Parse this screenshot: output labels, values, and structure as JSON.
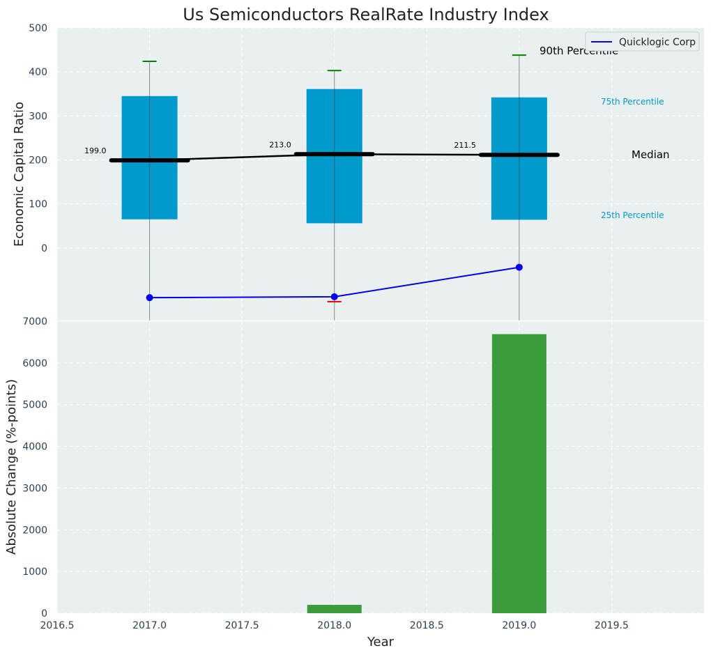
{
  "chart_data": [
    {
      "type": "box",
      "title": "Us Semiconductors RealRate Industry Index",
      "ylabel": "Economic Capital Ratio",
      "ylim": [
        -165,
        500
      ],
      "yticks": [
        0,
        100,
        200,
        300,
        400,
        500
      ],
      "categories": [
        2017,
        2018,
        2019
      ],
      "boxes": [
        {
          "x": 2017,
          "p10": -165,
          "q1": 65,
          "median": 199.0,
          "q3": 345,
          "p90": 424
        },
        {
          "x": 2018,
          "p10": -165,
          "q1": 56,
          "median": 213.0,
          "q3": 361,
          "p90": 403
        },
        {
          "x": 2019,
          "p10": -165,
          "q1": 64,
          "median": 211.5,
          "q3": 342,
          "p90": 438
        }
      ],
      "median_labels": [
        "199.0",
        "213.0",
        "211.5"
      ],
      "series": [
        {
          "name": "Quicklogic Corp",
          "x": [
            2017,
            2018,
            2019
          ],
          "values": [
            -113,
            -111,
            -44
          ],
          "color": "#0000ee"
        }
      ],
      "low_marker": {
        "x": 2018,
        "y": -122,
        "color": "#e00000"
      },
      "annotations": {
        "p90": "90th Percentile",
        "p75": "75th Percentile",
        "median": "Median",
        "p25": "25th Percentile"
      },
      "legend": {
        "position": "top-right",
        "entries": [
          "Quicklogic Corp"
        ]
      },
      "colors": {
        "box": "#009acd",
        "median": "#000000",
        "p90_cap": "#008000",
        "background": "#eaeff0",
        "pct_text": "#009acd"
      },
      "grid": true
    },
    {
      "type": "bar",
      "xlabel": "Year",
      "ylabel": "Absolute Change (%-points)",
      "xlim": [
        2016.5,
        2020.0
      ],
      "xticks": [
        "2016.5",
        "2017.0",
        "2017.5",
        "2018.0",
        "2018.5",
        "2019.0",
        "2019.5"
      ],
      "ylim": [
        0,
        7000
      ],
      "yticks": [
        0,
        1000,
        2000,
        3000,
        4000,
        5000,
        6000,
        7000
      ],
      "x": [
        2018,
        2019
      ],
      "values": [
        200,
        6690
      ],
      "colors": {
        "bar": "#3c9b3c"
      },
      "grid": true
    }
  ]
}
